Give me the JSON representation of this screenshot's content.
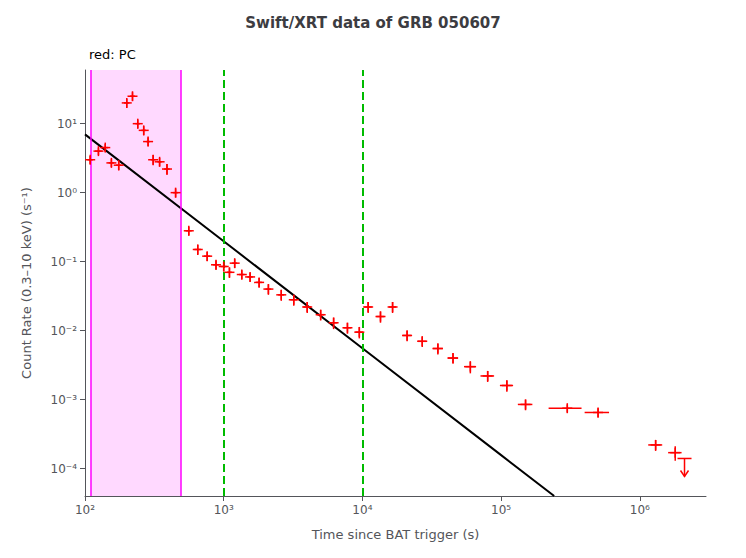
{
  "chart_data": {
    "type": "scatter",
    "title": "Swift/XRT data of GRB 050607",
    "xlabel": "Time since BAT trigger (s)",
    "ylabel": "Count Rate (0.3–10 keV) (s⁻¹)",
    "log": true,
    "grid": false,
    "xlim": [
      100,
      3000000
    ],
    "ylim": [
      4e-05,
      60
    ],
    "xticks": [
      {
        "value": 100,
        "label": "10²"
      },
      {
        "value": 1000,
        "label": "10³"
      },
      {
        "value": 10000,
        "label": "10⁴"
      },
      {
        "value": 100000,
        "label": "10⁵"
      },
      {
        "value": 1000000,
        "label": "10⁶"
      }
    ],
    "yticks": [
      {
        "value": 0.0001,
        "label": "10⁻⁴"
      },
      {
        "value": 0.001,
        "label": "10⁻³"
      },
      {
        "value": 0.01,
        "label": "10⁻²"
      },
      {
        "value": 0.1,
        "label": "10⁻¹"
      },
      {
        "value": 1,
        "label": "10⁰"
      },
      {
        "value": 10,
        "label": "10¹"
      }
    ],
    "annotations": [
      {
        "text": "red: PC"
      }
    ],
    "regions": [
      {
        "x": [
          110,
          490
        ],
        "color": "#ff00ff"
      }
    ],
    "vlines": [
      {
        "x": 1000,
        "color": "#00bb00",
        "line_style": "dashed"
      },
      {
        "x": 10000,
        "color": "#00bb00",
        "line_style": "dashed"
      }
    ],
    "series": [
      {
        "type": "scatter",
        "marker": "plus",
        "color": "#ff0000",
        "x": [
          109,
          125,
          140,
          155,
          175,
          200,
          220,
          240,
          265,
          285,
          310,
          345,
          390,
          450,
          560,
          650,
          760,
          880,
          1000,
          1100,
          1200,
          1350,
          1550,
          1800,
          2100,
          2600,
          3200,
          4000,
          5000,
          6200,
          7800,
          9500,
          11000,
          13500,
          16500,
          21000,
          27000,
          35000,
          45000,
          60000,
          80000,
          110000,
          150000,
          300000,
          500000,
          1300000,
          1800000
        ],
        "values": [
          3.0,
          4.0,
          4.5,
          2.7,
          2.5,
          20.0,
          25.0,
          10.0,
          8.0,
          5.5,
          3.0,
          2.8,
          2.2,
          1.0,
          0.28,
          0.15,
          0.12,
          0.09,
          0.085,
          0.07,
          0.095,
          0.065,
          0.06,
          0.05,
          0.04,
          0.033,
          0.028,
          0.022,
          0.017,
          0.013,
          0.011,
          0.0095,
          0.022,
          0.016,
          0.022,
          0.0085,
          0.007,
          0.0055,
          0.004,
          0.003,
          0.0022,
          0.0016,
          0.00085,
          0.00075,
          0.00065,
          0.00022,
          0.00017
        ],
        "xerr_lo": [
          5,
          7,
          7,
          7,
          8,
          9,
          9,
          9,
          10,
          8,
          12,
          12,
          18,
          20,
          28,
          35,
          40,
          45,
          50,
          45,
          50,
          60,
          70,
          85,
          100,
          130,
          180,
          250,
          300,
          400,
          500,
          600,
          700,
          900,
          1000,
          1500,
          2000,
          3000,
          4000,
          6000,
          9000,
          12000,
          18000,
          80000,
          100000,
          150000,
          200000
        ],
        "xerr_hi": [
          5,
          7,
          7,
          7,
          8,
          9,
          9,
          9,
          10,
          8,
          12,
          12,
          18,
          20,
          28,
          35,
          40,
          45,
          50,
          45,
          50,
          60,
          70,
          85,
          100,
          130,
          180,
          250,
          300,
          400,
          500,
          600,
          700,
          900,
          1000,
          1500,
          2000,
          3000,
          4000,
          6000,
          9000,
          12000,
          18000,
          80000,
          100000,
          150000,
          200000
        ],
        "yerr_lo": [
          0.4,
          0.5,
          0.6,
          0.35,
          0.4,
          3.0,
          3.5,
          1.5,
          1.2,
          0.8,
          0.5,
          0.4,
          0.4,
          0.15,
          0.04,
          0.025,
          0.018,
          0.014,
          0.013,
          0.012,
          0.014,
          0.01,
          0.009,
          0.008,
          0.007,
          0.006,
          0.005,
          0.004,
          0.003,
          0.0025,
          0.002,
          0.0018,
          0.004,
          0.003,
          0.004,
          0.0015,
          0.0012,
          0.001,
          0.0007,
          0.0006,
          0.0004,
          0.0003,
          0.00015,
          0.0001,
          0.0001,
          4e-05,
          4e-05
        ],
        "yerr_hi": [
          0.4,
          0.5,
          0.6,
          0.35,
          0.4,
          3.0,
          3.5,
          1.5,
          1.2,
          0.8,
          0.5,
          0.4,
          0.4,
          0.15,
          0.04,
          0.025,
          0.018,
          0.014,
          0.013,
          0.012,
          0.014,
          0.01,
          0.009,
          0.008,
          0.007,
          0.006,
          0.005,
          0.004,
          0.003,
          0.0025,
          0.002,
          0.0018,
          0.004,
          0.003,
          0.004,
          0.0015,
          0.0012,
          0.001,
          0.0007,
          0.0006,
          0.0004,
          0.0003,
          0.00015,
          0.0001,
          0.0001,
          4e-05,
          4e-05
        ]
      },
      {
        "type": "scatter",
        "marker": "upper_limit",
        "color": "#ff0000",
        "x": [
          2100000
        ],
        "values": [
          0.00014
        ]
      },
      {
        "type": "line",
        "color": "#000000",
        "line_style": "solid",
        "x": [
          100,
          1000,
          10000,
          100000,
          241327
        ],
        "values": [
          7,
          0.197287,
          0.0055603,
          0.00015671,
          4e-05
        ]
      }
    ]
  }
}
